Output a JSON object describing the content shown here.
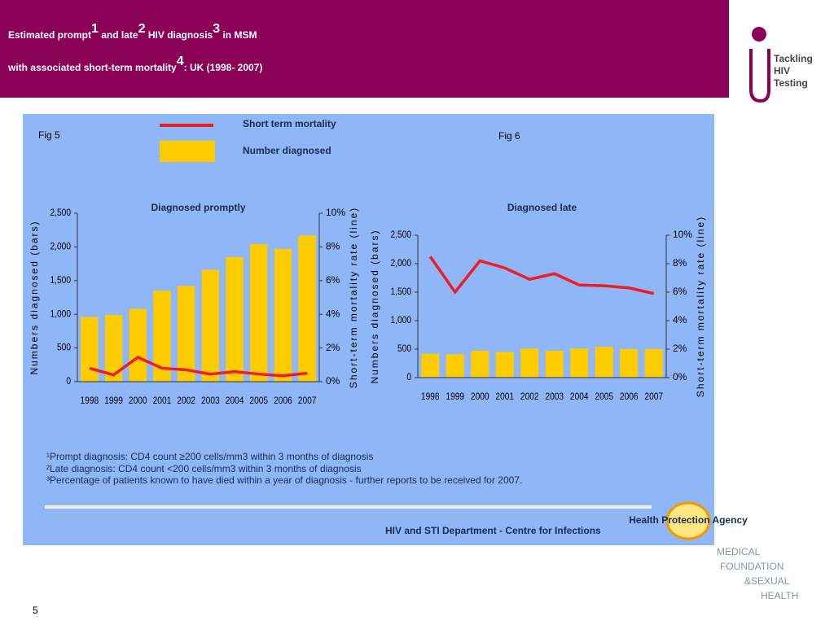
{
  "header": {
    "title_lines": [
      [
        "Estimated prompt",
        "1",
        " and late",
        "2",
        " HIV diagnosis",
        "3",
        " in MSM"
      ],
      [
        "with associated short-term mortality",
        "4",
        ": UK (1998- 2007)"
      ]
    ],
    "logo": [
      "Tackling",
      "HIV",
      "Testing"
    ]
  },
  "chart_data": [
    {
      "type": "bar",
      "figure": "Fig 5",
      "title": "Diagnosed promptly",
      "categories": [
        "1998",
        "1999",
        "2000",
        "2001",
        "2002",
        "2003",
        "2004",
        "2005",
        "2006",
        "2007"
      ],
      "ylabel": "Numbers diagnosed (bars)",
      "y2label": "Short-term mortality rate (line)",
      "ylim": [
        0,
        2500
      ],
      "yticks": [
        0,
        500,
        {
          "value": 1000,
          "label": "1,000"
        },
        {
          "value": 1500,
          "label": "1,500"
        },
        {
          "value": 2000,
          "label": "2,000"
        },
        {
          "value": 2500,
          "label": "2,500"
        }
      ],
      "y2lim": [
        0,
        10
      ],
      "y2ticks": [
        {
          "value": 0,
          "label": "0%"
        },
        {
          "value": 2,
          "label": "2%"
        },
        {
          "value": 4,
          "label": "4%"
        },
        {
          "value": 6,
          "label": "6%"
        },
        {
          "value": 8,
          "label": "8%"
        },
        {
          "value": 10,
          "label": "10%"
        }
      ],
      "series": [
        {
          "name": "Number diagnosed",
          "color": "#ffcc00",
          "values": [
            960,
            990,
            1080,
            1350,
            1420,
            1660,
            1850,
            2040,
            1970,
            2170
          ]
        },
        {
          "name": "Short term mortality",
          "color": "#ee1c24",
          "type": "line",
          "axis": "y2",
          "values": [
            0.8,
            0.4,
            1.45,
            0.8,
            0.7,
            0.45,
            0.6,
            0.45,
            0.35,
            0.5
          ]
        }
      ]
    },
    {
      "type": "bar",
      "figure": "Fig 6",
      "title": "Diagnosed late",
      "categories": [
        "1998",
        "1999",
        "2000",
        "2001",
        "2002",
        "2003",
        "2004",
        "2005",
        "2006",
        "2007"
      ],
      "ylabel": "Numbers diagnosed (bars)",
      "y2label": "Short-term mortality rate (line)",
      "ylim": [
        0,
        2500
      ],
      "yticks": [
        0,
        500,
        {
          "value": 1000,
          "label": "1,000"
        },
        {
          "value": 1500,
          "label": "1,500"
        },
        {
          "value": 2000,
          "label": "2,000"
        },
        {
          "value": 2500,
          "label": "2,500"
        }
      ],
      "y2lim": [
        0,
        10
      ],
      "y2ticks": [
        {
          "value": 0,
          "label": "0%"
        },
        {
          "value": 2,
          "label": "2%"
        },
        {
          "value": 4,
          "label": "4%"
        },
        {
          "value": 6,
          "label": "6%"
        },
        {
          "value": 8,
          "label": "8%"
        },
        {
          "value": 10,
          "label": "10%"
        }
      ],
      "series": [
        {
          "name": "Number diagnosed",
          "color": "#ffcc00",
          "values": [
            420,
            410,
            470,
            450,
            510,
            470,
            510,
            540,
            500,
            500
          ]
        },
        {
          "name": "Short term mortality",
          "color": "#ee1c24",
          "type": "line",
          "axis": "y2",
          "values": [
            8.5,
            6,
            8.2,
            7.7,
            6.9,
            7.3,
            6.5,
            6.45,
            6.3,
            5.9
          ]
        }
      ]
    }
  ],
  "footnotes": [
    "¹Prompt diagnosis: CD4 count ≥200 cells/mm3 within 3 months of diagnosis",
    "²Late diagnosis: CD4 count <200 cells/mm3 within 3 months of diagnosis",
    "³Percentage of patients known to have died within a year of diagnosis - further reports to be received for 2007."
  ],
  "footer": "HIV and STI Department  - Centre for Infections",
  "hpa": "Health Protection Agency",
  "medfash": [
    "MEDICAL",
    "FOUNDATION",
    "&SEXUAL",
    "HEALTH"
  ],
  "page_number": "5"
}
